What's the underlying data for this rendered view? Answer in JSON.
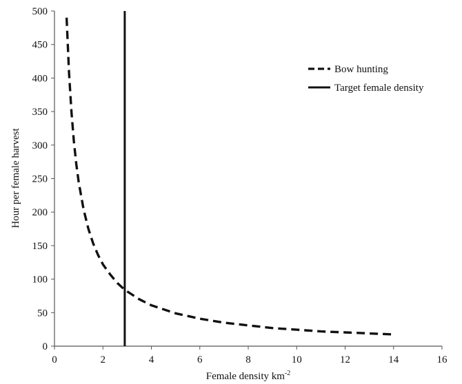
{
  "chart_data": {
    "type": "line",
    "xlabel": "Female density km",
    "xlabel_superscript": "-2",
    "ylabel": "Hour per female harvest",
    "xlim": [
      0,
      16
    ],
    "ylim": [
      0,
      500
    ],
    "x_ticks": [
      "0",
      "2",
      "4",
      "6",
      "8",
      "10",
      "12",
      "14",
      "16"
    ],
    "y_ticks": [
      "0",
      "50",
      "100",
      "150",
      "200",
      "250",
      "300",
      "350",
      "400",
      "450",
      "500"
    ],
    "grid": false,
    "legend_position": "top-right",
    "series": [
      {
        "name": "Bow hunting",
        "style": "dashed",
        "color": "#111111",
        "points": [
          [
            0.5,
            490
          ],
          [
            0.6,
            408
          ],
          [
            0.7,
            350
          ],
          [
            0.8,
            306
          ],
          [
            0.9,
            272
          ],
          [
            1.0,
            245
          ],
          [
            1.2,
            204
          ],
          [
            1.4,
            175
          ],
          [
            1.6,
            153
          ],
          [
            1.8,
            136
          ],
          [
            2.0,
            122
          ],
          [
            2.3,
            107
          ],
          [
            2.6,
            94
          ],
          [
            2.9,
            84
          ],
          [
            3.5,
            70
          ],
          [
            4.0,
            61
          ],
          [
            5.0,
            49
          ],
          [
            6.0,
            41
          ],
          [
            7.0,
            35
          ],
          [
            8.0,
            31
          ],
          [
            9.0,
            27
          ],
          [
            10.0,
            24.5
          ],
          [
            11.0,
            22
          ],
          [
            12.0,
            20.5
          ],
          [
            13.0,
            19
          ],
          [
            14.0,
            17.5
          ]
        ]
      },
      {
        "name": "Target female density",
        "style": "solid",
        "color": "#111111",
        "points": [
          [
            2.9,
            0
          ],
          [
            2.9,
            500
          ]
        ]
      }
    ]
  }
}
